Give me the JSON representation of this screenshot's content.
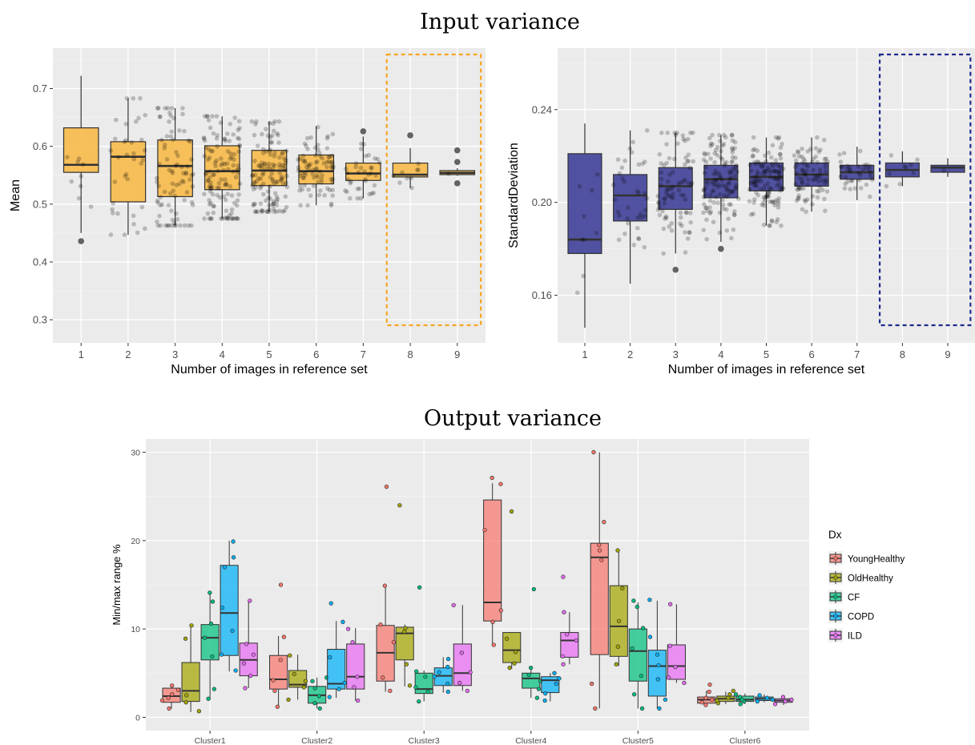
{
  "titles": {
    "input": "Input variance",
    "output": "Output variance"
  },
  "chart_data": [
    {
      "type": "box",
      "title": "",
      "xlabel": "Number of images in reference set",
      "ylabel": "Mean",
      "categories": [
        "1",
        "2",
        "3",
        "4",
        "5",
        "6",
        "7",
        "8",
        "9"
      ],
      "ylim": [
        0.26,
        0.77
      ],
      "yticks": [
        0.3,
        0.4,
        0.5,
        0.6,
        0.7
      ],
      "fill": "#F7B844",
      "highlight": {
        "from_category": "8",
        "to_category": "9",
        "color": "#F5A623",
        "style": "dashed"
      },
      "boxes": [
        {
          "q1": 0.555,
          "median": 0.568,
          "q3": 0.632,
          "lower": 0.45,
          "upper": 0.722,
          "n": 9,
          "outliers": [
            0.436
          ]
        },
        {
          "q1": 0.504,
          "median": 0.582,
          "q3": 0.608,
          "lower": 0.447,
          "upper": 0.683,
          "n": 36,
          "outliers": []
        },
        {
          "q1": 0.513,
          "median": 0.566,
          "q3": 0.611,
          "lower": 0.463,
          "upper": 0.666,
          "n": 84,
          "outliers": []
        },
        {
          "q1": 0.525,
          "median": 0.557,
          "q3": 0.601,
          "lower": 0.475,
          "upper": 0.652,
          "n": 126,
          "outliers": []
        },
        {
          "q1": 0.532,
          "median": 0.558,
          "q3": 0.593,
          "lower": 0.487,
          "upper": 0.643,
          "n": 126,
          "outliers": []
        },
        {
          "q1": 0.535,
          "median": 0.557,
          "q3": 0.585,
          "lower": 0.498,
          "upper": 0.635,
          "n": 84,
          "outliers": []
        },
        {
          "q1": 0.541,
          "median": 0.553,
          "q3": 0.571,
          "lower": 0.51,
          "upper": 0.617,
          "n": 36,
          "outliers": [
            0.626
          ]
        },
        {
          "q1": 0.547,
          "median": 0.551,
          "q3": 0.571,
          "lower": 0.528,
          "upper": 0.597,
          "n": 9,
          "outliers": [
            0.619
          ]
        },
        {
          "q1": 0.551,
          "median": 0.554,
          "q3": 0.558,
          "lower": 0.549,
          "upper": 0.562,
          "n": 1,
          "outliers": [
            0.593,
            0.573,
            0.536
          ]
        }
      ]
    },
    {
      "type": "box",
      "title": "",
      "xlabel": "Number of images in reference set",
      "ylabel": "StandardDeviation",
      "categories": [
        "1",
        "2",
        "3",
        "4",
        "5",
        "6",
        "7",
        "8",
        "9"
      ],
      "ylim": [
        0.1395,
        0.2665
      ],
      "yticks": [
        0.16,
        0.2,
        0.24
      ],
      "ytick_labels": [
        "0.16",
        "0.20",
        "0.24"
      ],
      "fill": "#3B3B96",
      "highlight": {
        "from_category": "8",
        "to_category": "9",
        "color": "#1F2A8A",
        "style": "dashed"
      },
      "boxes": [
        {
          "q1": 0.178,
          "median": 0.184,
          "q3": 0.221,
          "lower": 0.146,
          "upper": 0.234,
          "n": 9,
          "outliers": []
        },
        {
          "q1": 0.192,
          "median": 0.203,
          "q3": 0.212,
          "lower": 0.165,
          "upper": 0.231,
          "n": 36,
          "outliers": []
        },
        {
          "q1": 0.197,
          "median": 0.207,
          "q3": 0.215,
          "lower": 0.178,
          "upper": 0.23,
          "n": 84,
          "outliers": [
            0.171
          ]
        },
        {
          "q1": 0.202,
          "median": 0.21,
          "q3": 0.216,
          "lower": 0.183,
          "upper": 0.229,
          "n": 126,
          "outliers": [
            0.18
          ]
        },
        {
          "q1": 0.205,
          "median": 0.211,
          "q3": 0.217,
          "lower": 0.19,
          "upper": 0.228,
          "n": 126,
          "outliers": []
        },
        {
          "q1": 0.207,
          "median": 0.212,
          "q3": 0.217,
          "lower": 0.196,
          "upper": 0.228,
          "n": 84,
          "outliers": []
        },
        {
          "q1": 0.21,
          "median": 0.213,
          "q3": 0.216,
          "lower": 0.201,
          "upper": 0.224,
          "n": 36,
          "outliers": []
        },
        {
          "q1": 0.211,
          "median": 0.214,
          "q3": 0.217,
          "lower": 0.207,
          "upper": 0.222,
          "n": 9,
          "outliers": []
        },
        {
          "q1": 0.213,
          "median": 0.215,
          "q3": 0.216,
          "lower": 0.211,
          "upper": 0.219,
          "n": 1,
          "outliers": []
        }
      ]
    },
    {
      "type": "box",
      "title": "",
      "xlabel": "",
      "ylabel": "Min/max range %",
      "categories": [
        "Cluster1",
        "Cluster2",
        "Cluster3",
        "Cluster4",
        "Cluster5",
        "Cluster6"
      ],
      "ylim": [
        -1.5,
        31.5
      ],
      "yticks": [
        0,
        10,
        20,
        30
      ],
      "legend": {
        "title": "Dx",
        "position": "right"
      },
      "series": [
        {
          "name": "YoungHealthy",
          "color": "#F8766D",
          "boxes": [
            {
              "q1": 1.7,
              "median": 2.4,
              "q3": 3.3,
              "lower": 1.0,
              "upper": 3.8
            },
            {
              "q1": 3.2,
              "median": 4.3,
              "q3": 7.0,
              "lower": 1.2,
              "upper": 9.2
            },
            {
              "q1": 4.1,
              "median": 7.3,
              "q3": 10.4,
              "lower": 2.9,
              "upper": 15.1
            },
            {
              "q1": 10.9,
              "median": 13.0,
              "q3": 24.6,
              "lower": 8.1,
              "upper": 26.5
            },
            {
              "q1": 7.1,
              "median": 18.1,
              "q3": 19.7,
              "lower": 1.0,
              "upper": 30.0
            },
            {
              "q1": 1.6,
              "median": 2.0,
              "q3": 2.3,
              "lower": 1.3,
              "upper": 3.0
            }
          ],
          "points": [
            [
              1.0,
              1.9,
              2.6,
              3.1,
              3.6,
              2.2
            ],
            [
              1.2,
              3.0,
              4.2,
              6.5,
              9.1,
              15.0
            ],
            [
              3.0,
              4.5,
              8.5,
              10.5,
              14.9,
              26.1
            ],
            [
              8.2,
              10.8,
              12.1,
              21.2,
              26.4,
              27.1
            ],
            [
              1.0,
              3.8,
              17.8,
              18.9,
              19.5,
              22.1,
              30.0
            ],
            [
              1.4,
              1.7,
              2.0,
              2.2,
              2.9,
              3.7
            ]
          ]
        },
        {
          "name": "OldHealthy",
          "color": "#A3A500",
          "boxes": [
            {
              "q1": 1.8,
              "median": 3.0,
              "q3": 6.2,
              "lower": 0.6,
              "upper": 10.5
            },
            {
              "q1": 3.4,
              "median": 3.7,
              "q3": 5.3,
              "lower": 2.0,
              "upper": 7.1
            },
            {
              "q1": 6.5,
              "median": 9.5,
              "q3": 10.2,
              "lower": 3.5,
              "upper": 10.5
            },
            {
              "q1": 6.2,
              "median": 7.6,
              "q3": 9.6,
              "lower": 5.5,
              "upper": 9.6
            },
            {
              "q1": 6.9,
              "median": 10.3,
              "q3": 14.9,
              "lower": 5.8,
              "upper": 18.9
            },
            {
              "q1": 1.8,
              "median": 2.1,
              "q3": 2.4,
              "lower": 1.5,
              "upper": 2.9
            }
          ],
          "points": [
            [
              0.7,
              1.7,
              2.5,
              8.9,
              10.4
            ],
            [
              2.0,
              3.4,
              4.1,
              4.9,
              7.0
            ],
            [
              3.6,
              6.0,
              9.7,
              10.1,
              24.0
            ],
            [
              5.6,
              6.1,
              7.4,
              8.9,
              23.3
            ],
            [
              6.0,
              8.0,
              10.9,
              14.6,
              18.9
            ],
            [
              1.6,
              1.9,
              2.2,
              2.6,
              3.0
            ]
          ]
        },
        {
          "name": "CF",
          "color": "#00BF7D",
          "boxes": [
            {
              "q1": 6.5,
              "median": 9.0,
              "q3": 10.5,
              "lower": 2.1,
              "upper": 14.0
            },
            {
              "q1": 1.6,
              "median": 2.5,
              "q3": 3.5,
              "lower": 1.0,
              "upper": 4.5
            },
            {
              "q1": 2.7,
              "median": 3.2,
              "q3": 5.0,
              "lower": 1.8,
              "upper": 5.3
            },
            {
              "q1": 3.3,
              "median": 4.4,
              "q3": 5.0,
              "lower": 2.2,
              "upper": 5.7
            },
            {
              "q1": 4.1,
              "median": 7.5,
              "q3": 10.0,
              "lower": 1.0,
              "upper": 13.0
            },
            {
              "q1": 1.8,
              "median": 2.0,
              "q3": 2.4,
              "lower": 1.5,
              "upper": 2.7
            }
          ],
          "points": [
            [
              2.1,
              3.2,
              6.9,
              9.0,
              10.6,
              13.1,
              14.1
            ],
            [
              1.0,
              1.6,
              2.4,
              3.3,
              4.1,
              4.5
            ],
            [
              1.8,
              2.9,
              3.4,
              4.6,
              5.2,
              14.7
            ],
            [
              2.2,
              3.2,
              4.1,
              4.8,
              5.6,
              14.5
            ],
            [
              1.0,
              2.6,
              4.7,
              7.8,
              10.1,
              12.5,
              13.2
            ],
            [
              1.5,
              1.8,
              2.0,
              2.3,
              2.6
            ]
          ]
        },
        {
          "name": "COPD",
          "color": "#00B0F6",
          "boxes": [
            {
              "q1": 7.0,
              "median": 11.8,
              "q3": 17.2,
              "lower": 5.2,
              "upper": 20.0
            },
            {
              "q1": 3.2,
              "median": 3.8,
              "q3": 7.7,
              "lower": 2.2,
              "upper": 10.9
            },
            {
              "q1": 3.6,
              "median": 4.7,
              "q3": 5.6,
              "lower": 2.8,
              "upper": 6.8
            },
            {
              "q1": 2.8,
              "median": 4.2,
              "q3": 4.6,
              "lower": 1.8,
              "upper": 5.0
            },
            {
              "q1": 2.4,
              "median": 5.8,
              "q3": 7.6,
              "lower": 1.0,
              "upper": 13.2
            },
            {
              "q1": 1.9,
              "median": 2.1,
              "q3": 2.3,
              "lower": 1.7,
              "upper": 2.6
            }
          ],
          "points": [
            [
              5.3,
              7.1,
              9.8,
              12.4,
              17.0,
              18.1,
              19.9
            ],
            [
              2.3,
              3.2,
              3.9,
              6.8,
              10.8,
              12.9
            ],
            [
              2.9,
              3.8,
              4.6,
              5.1,
              5.7,
              6.6
            ],
            [
              1.9,
              2.7,
              3.8,
              4.4,
              5.0
            ],
            [
              1.0,
              2.0,
              4.3,
              5.9,
              7.1,
              9.1,
              13.3
            ],
            [
              1.8,
              2.0,
              2.2,
              2.5
            ]
          ]
        },
        {
          "name": "ILD",
          "color": "#E76BF3",
          "boxes": [
            {
              "q1": 4.7,
              "median": 6.5,
              "q3": 8.4,
              "lower": 3.3,
              "upper": 13.2
            },
            {
              "q1": 3.2,
              "median": 4.6,
              "q3": 8.3,
              "lower": 1.9,
              "upper": 10.1
            },
            {
              "q1": 3.6,
              "median": 5.0,
              "q3": 8.3,
              "lower": 3.0,
              "upper": 12.7
            },
            {
              "q1": 6.8,
              "median": 8.7,
              "q3": 9.6,
              "lower": 6.0,
              "upper": 11.9
            },
            {
              "q1": 4.3,
              "median": 5.8,
              "q3": 8.2,
              "lower": 3.9,
              "upper": 12.8
            },
            {
              "q1": 1.7,
              "median": 1.9,
              "q3": 2.1,
              "lower": 1.4,
              "upper": 2.4
            }
          ],
          "points": [
            [
              3.3,
              4.7,
              6.1,
              7.1,
              8.3,
              13.2
            ],
            [
              1.9,
              3.4,
              4.6,
              8.5,
              10.0
            ],
            [
              3.0,
              3.9,
              5.1,
              7.3,
              12.7
            ],
            [
              6.0,
              6.9,
              8.7,
              9.4,
              11.9,
              15.9
            ],
            [
              3.9,
              4.5,
              5.7,
              8.1,
              12.8
            ],
            [
              1.5,
              1.8,
              2.0,
              2.3
            ]
          ]
        }
      ]
    }
  ]
}
